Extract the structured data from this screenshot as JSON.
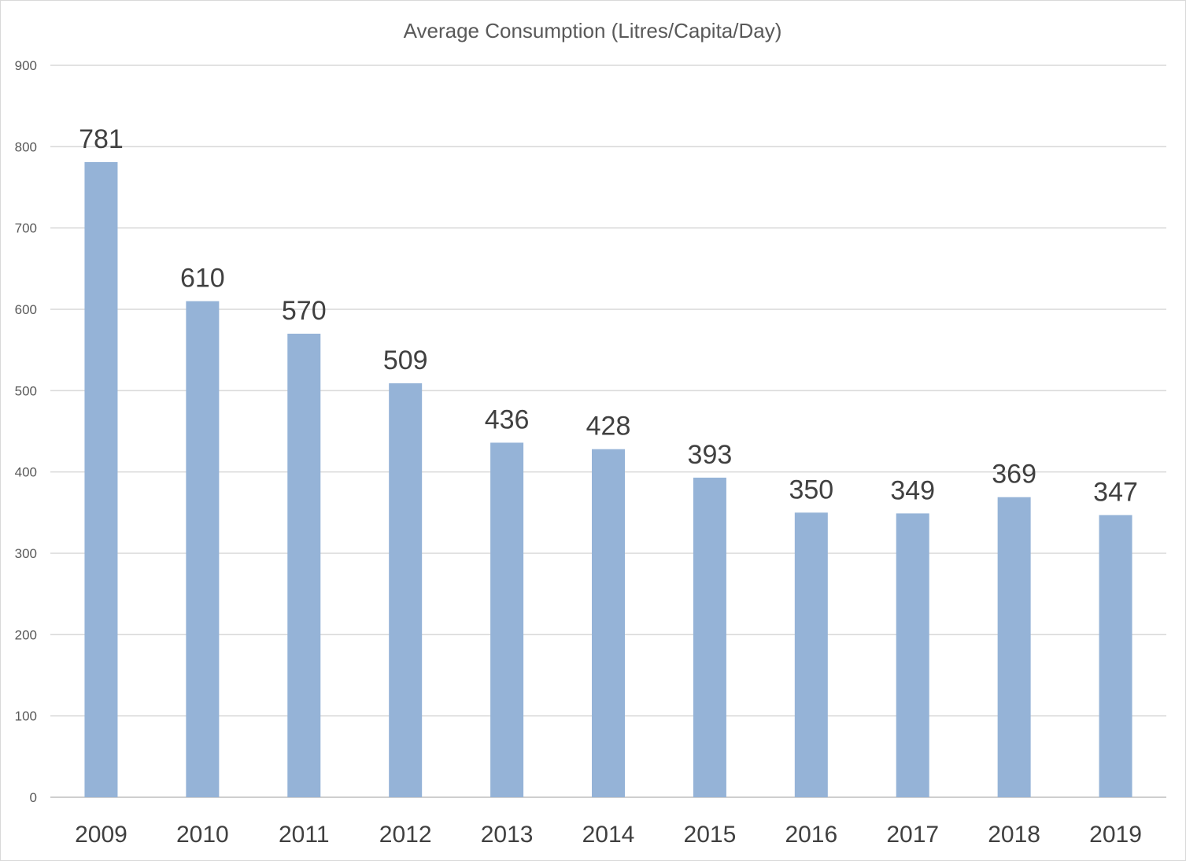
{
  "chart_data": {
    "type": "bar",
    "title": "Average Consumption (Litres/Capita/Day)",
    "xlabel": "",
    "ylabel": "",
    "categories": [
      "2009",
      "2010",
      "2011",
      "2012",
      "2013",
      "2014",
      "2015",
      "2016",
      "2017",
      "2018",
      "2019"
    ],
    "values": [
      781,
      610,
      570,
      509,
      436,
      428,
      393,
      350,
      349,
      369,
      347
    ],
    "data_labels": [
      "781",
      "610",
      "570",
      "509",
      "436",
      "428",
      "393",
      "350",
      "349",
      "369",
      "347"
    ],
    "ylim": [
      0,
      900
    ],
    "yticks": [
      "0",
      "100",
      "200",
      "300",
      "400",
      "500",
      "600",
      "700",
      "800",
      "900"
    ],
    "ytick_values": [
      0,
      100,
      200,
      300,
      400,
      500,
      600,
      700,
      800,
      900
    ],
    "grid": true,
    "legend": "none",
    "bar_color": "#95b3d7"
  }
}
